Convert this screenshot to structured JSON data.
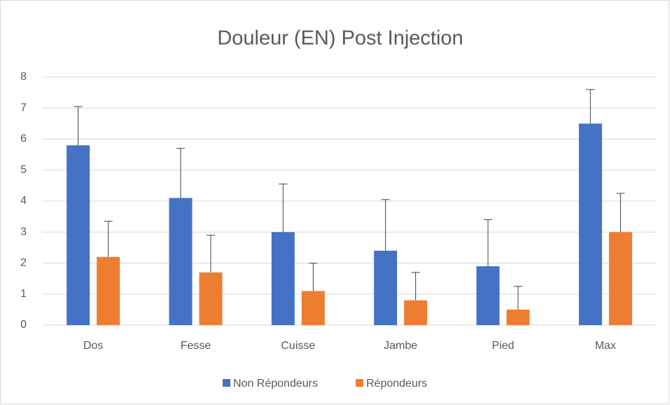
{
  "chart_data": {
    "type": "bar",
    "title": "Douleur (EN) Post Injection",
    "categories": [
      "Dos",
      "Fesse",
      "Cuisse",
      "Jambe",
      "Pied",
      "Max"
    ],
    "series": [
      {
        "name": "Non Répondeurs",
        "color": "#4472c4",
        "values": [
          5.8,
          4.1,
          3.0,
          2.4,
          1.9,
          6.5
        ],
        "errors": [
          1.25,
          1.6,
          1.55,
          1.65,
          1.5,
          1.1
        ]
      },
      {
        "name": "Répondeurs",
        "color": "#ed7d31",
        "values": [
          2.2,
          1.7,
          1.1,
          0.8,
          0.5,
          3.0
        ],
        "errors": [
          1.15,
          1.2,
          0.9,
          0.9,
          0.75,
          1.25
        ]
      }
    ],
    "ylim": [
      0,
      8
    ],
    "yticks": [
      0,
      1,
      2,
      3,
      4,
      5,
      6,
      7,
      8
    ],
    "grid": true,
    "legend": "bottom"
  }
}
